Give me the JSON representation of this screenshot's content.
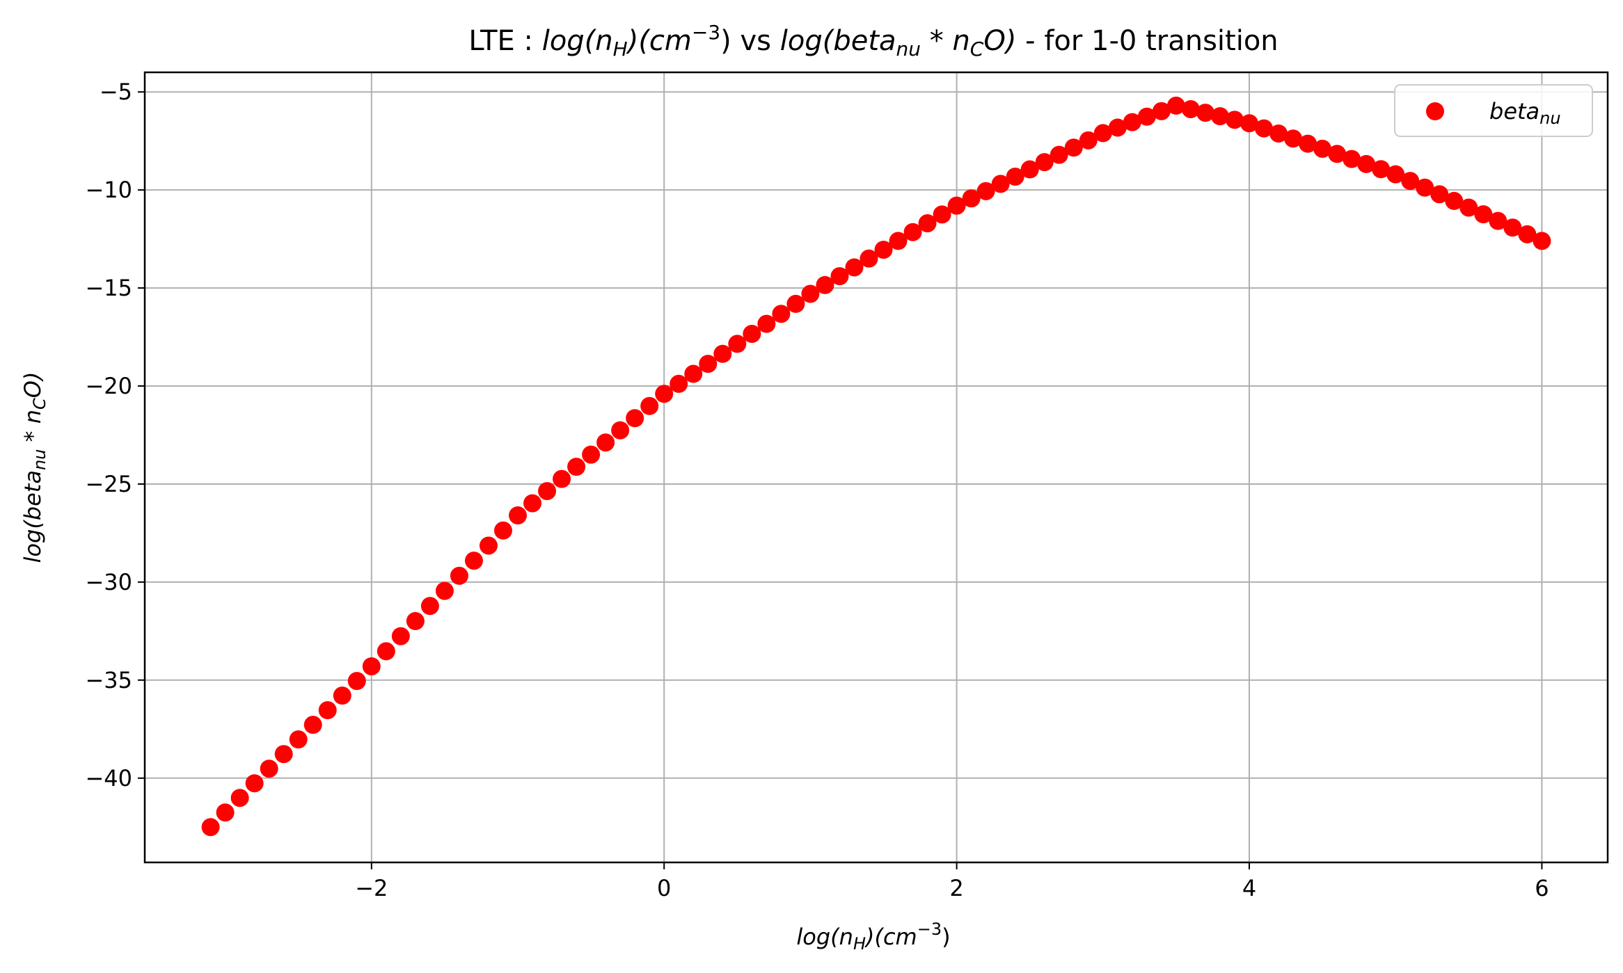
{
  "chart_data": {
    "type": "scatter",
    "title": {
      "prefix": "LTE : ",
      "x_expr": {
        "base": "log(n",
        "sub": "H",
        "mid": ")(cm",
        "sup": "−3",
        "end": ")"
      },
      "vs": " vs ",
      "y_expr": {
        "base": "log(beta",
        "sub": "nu",
        "mid": " * n",
        "sub2": "C",
        "end": "O)"
      },
      "suffix": " - for 1-0 transition"
    },
    "xlabel": {
      "base": "log(n",
      "sub": "H",
      "mid": ")(cm",
      "sup": "−3",
      "end": ")"
    },
    "ylabel": {
      "base": "log(beta",
      "sub": "nu",
      "mid": " * n",
      "sub2": "C",
      "end": "O)"
    },
    "xlim": [
      -3.55,
      6.45
    ],
    "ylim": [
      -44.3,
      -4.0
    ],
    "xticks": [
      -2,
      0,
      2,
      4,
      6
    ],
    "yticks": [
      -5,
      -10,
      -15,
      -20,
      -25,
      -30,
      -35,
      -40
    ],
    "grid": true,
    "legend_position": "top-right",
    "colors": {
      "series": "#ff0000",
      "grid": "#b0b0b0",
      "axes": "#000000"
    },
    "series": [
      {
        "name": {
          "base": "beta",
          "sub": "nu"
        },
        "x_start": -3.1,
        "x_end": 6.0,
        "n_points": 92,
        "points": [
          [
            -3.1,
            -42.5
          ],
          [
            -2.0,
            -34.3
          ],
          [
            -1.0,
            -26.6
          ],
          [
            0.0,
            -20.4
          ],
          [
            1.0,
            -15.3
          ],
          [
            2.0,
            -10.8
          ],
          [
            3.0,
            -7.1
          ],
          [
            3.5,
            -5.7
          ],
          [
            4.0,
            -6.6
          ],
          [
            5.0,
            -9.2
          ],
          [
            6.0,
            -12.6
          ]
        ]
      }
    ]
  }
}
